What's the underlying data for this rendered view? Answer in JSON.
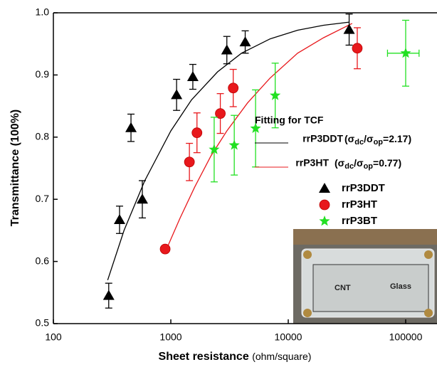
{
  "chart_data": {
    "type": "scatter",
    "x_label": "Sheet resistance",
    "x_label_unit": "(ohm/square)",
    "y_label": "Transmittance (100%)",
    "xlim": [
      100,
      185000
    ],
    "xticks": [
      100,
      1000,
      10000,
      100000
    ],
    "log_x": true,
    "ylim": [
      0.5,
      1.0
    ],
    "yticks": [
      0.5,
      0.6,
      0.7,
      0.8,
      0.9,
      {
        "value": 1.0,
        "label": "1.0"
      }
    ],
    "series": [
      {
        "name": "rrP3DDT",
        "color": "#000000",
        "marker": "triangle",
        "x": [
          296,
          366,
          458,
          572,
          1120,
          1540,
          3000,
          4300,
          33000
        ],
        "values": [
          0.545,
          0.667,
          0.815,
          0.7,
          0.868,
          0.897,
          0.94,
          0.953,
          0.973
        ],
        "errors": [
          0.02,
          0.022,
          0.022,
          0.03,
          0.025,
          0.02,
          0.022,
          0.018,
          0.025
        ]
      },
      {
        "name": "rrP3HT",
        "color": "#e8181c",
        "marker": "circle",
        "x": [
          895,
          1440,
          1670,
          2640,
          3400,
          38700
        ],
        "values": [
          0.62,
          0.76,
          0.807,
          0.838,
          0.879,
          0.943
        ],
        "errors": [
          null,
          0.03,
          0.032,
          0.032,
          0.03,
          0.033
        ]
      },
      {
        "name": "rrP3BT",
        "color": "#22e022",
        "marker": "star",
        "x": [
          2340,
          3470,
          5270,
          7740,
          100000
        ],
        "values": [
          0.78,
          0.787,
          0.814,
          0.867,
          0.935
        ],
        "errors": [
          0.052,
          0.048,
          0.062,
          0.052,
          0.053
        ],
        "xerr": [
          null,
          null,
          null,
          null,
          30000
        ]
      }
    ],
    "fits": [
      {
        "color": "#000000",
        "x": [
          290,
          400,
          600,
          1000,
          1500,
          2500,
          4000,
          7000,
          12000,
          20000,
          33000
        ],
        "values": [
          0.57,
          0.65,
          0.73,
          0.81,
          0.86,
          0.905,
          0.935,
          0.958,
          0.972,
          0.98,
          0.985
        ]
      },
      {
        "color": "#e8181c",
        "x": [
          920,
          1200,
          1600,
          2200,
          3000,
          4500,
          7000,
          12000,
          20000,
          35000
        ],
        "values": [
          0.62,
          0.67,
          0.72,
          0.77,
          0.81,
          0.855,
          0.895,
          0.935,
          0.96,
          0.983
        ]
      }
    ],
    "annotation": {
      "title": "Fitting for TCF",
      "lines": [
        {
          "label": "rrP3DDT",
          "parts": [
            "(σ",
            "dc",
            "/σ",
            "op",
            "=2.17)"
          ]
        },
        {
          "label": "rrP3HT",
          "parts": [
            "(σ",
            "dc",
            "/σ",
            "op",
            "=0.77)"
          ]
        }
      ]
    },
    "inset_labels": [
      "CNT",
      "Glass"
    ]
  }
}
